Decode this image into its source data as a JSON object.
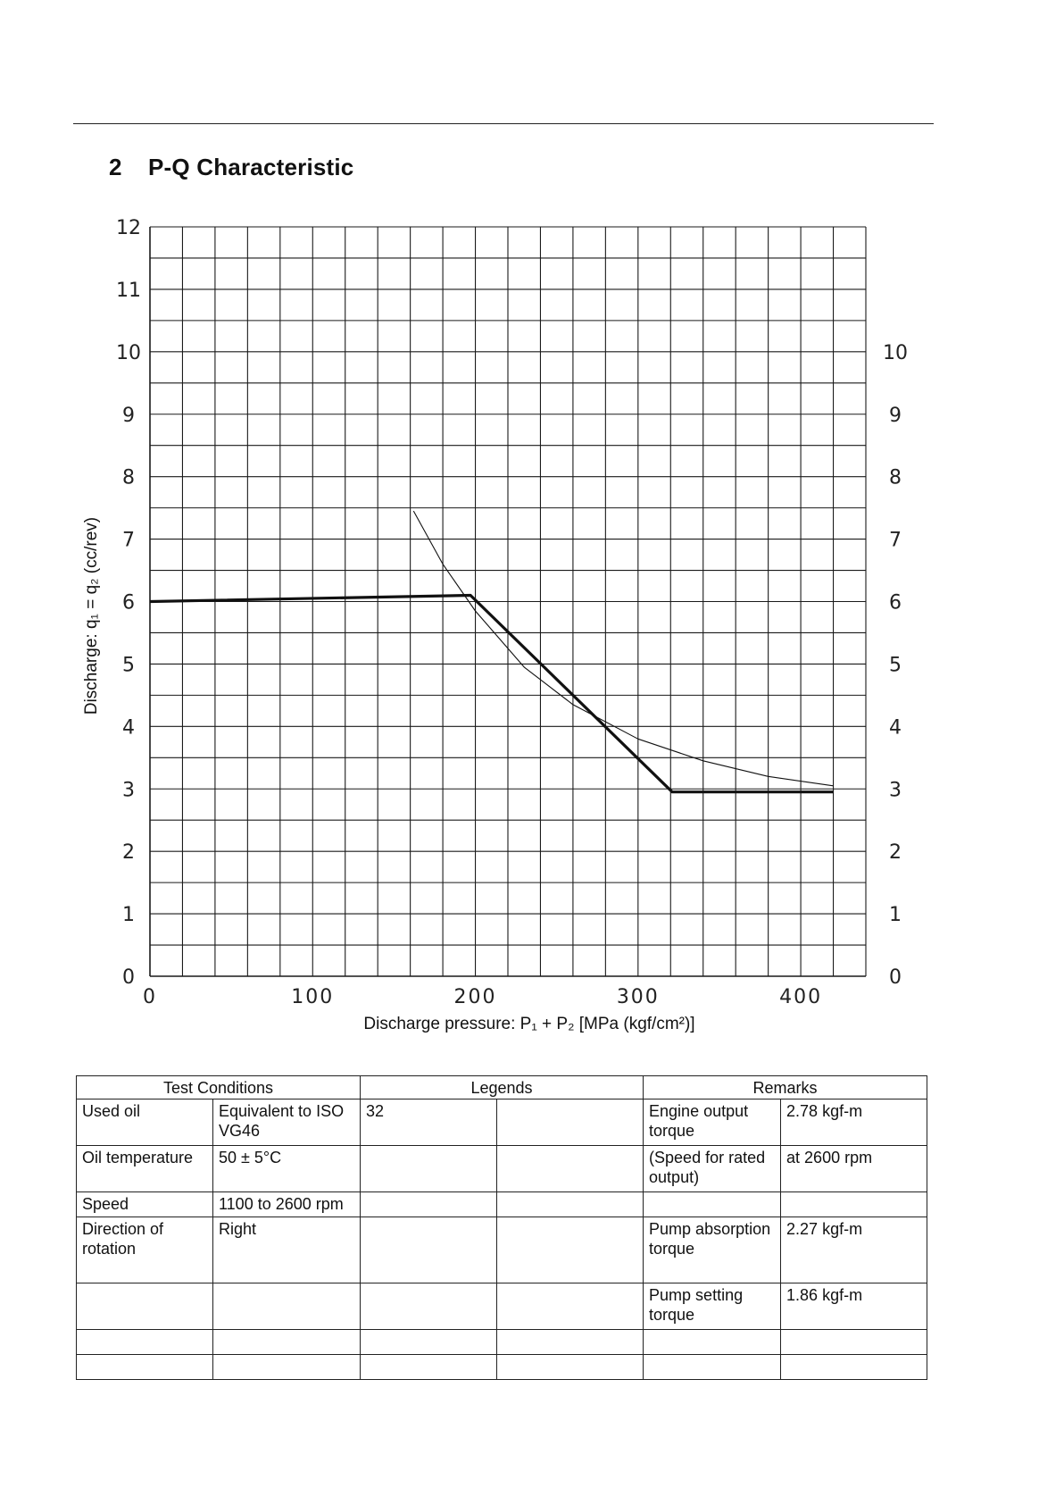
{
  "section": {
    "number": "2",
    "title": "P-Q Characteristic"
  },
  "chart_data": {
    "type": "line",
    "title": "",
    "xlabel": "Discharge pressure: P₁ + P₂ [MPa (kgf/cm²)]",
    "ylabel": "Discharge: q₁ = q₂ (cc/rev)",
    "xlim": [
      0,
      440
    ],
    "ylim": [
      0,
      12
    ],
    "x_ticks": [
      "0",
      "100",
      "200",
      "300",
      "400"
    ],
    "y_ticks_left": [
      "0",
      "1",
      "2",
      "3",
      "4",
      "5",
      "6",
      "7",
      "8",
      "9",
      "10",
      "11",
      "12"
    ],
    "y_ticks_right": [
      "0",
      "1",
      "2",
      "3",
      "4",
      "5",
      "6",
      "7",
      "8",
      "9",
      "10"
    ],
    "grid": true,
    "series": [
      {
        "style": "thick",
        "x": [
          0,
          197,
          321,
          420
        ],
        "y": [
          6.0,
          6.1,
          2.95,
          2.95
        ]
      },
      {
        "style": "thin",
        "x": [
          162,
          180,
          200,
          230,
          260,
          300,
          340,
          380,
          420
        ],
        "y": [
          7.45,
          6.6,
          5.85,
          4.95,
          4.35,
          3.8,
          3.45,
          3.2,
          3.05
        ]
      }
    ]
  },
  "table": {
    "headers": {
      "test_conditions": "Test Conditions",
      "legends": "Legends",
      "remarks": "Remarks"
    },
    "rows": [
      {
        "c1": "Used oil",
        "c2": "Equivalent to ISO VG46",
        "c3": "32",
        "c4": "",
        "c5": "Engine output torque",
        "c6": "2.78 kgf-m"
      },
      {
        "c1": "Oil temperature",
        "c2": "50 ± 5°C",
        "c3": "",
        "c4": "",
        "c5": "(Speed for rated output)",
        "c6": "at 2600 rpm"
      },
      {
        "c1": "Speed",
        "c2": "1100 to 2600 rpm",
        "c3": "",
        "c4": "",
        "c5": "",
        "c6": ""
      },
      {
        "c1": "Direction of rotation",
        "c2": "Right",
        "c3": "",
        "c4": "",
        "c5": "Pump absorption torque",
        "c6": "2.27 kgf-m"
      },
      {
        "c1": "",
        "c2": "",
        "c3": "",
        "c4": "",
        "c5": "Pump setting torque",
        "c6": "1.86 kgf-m"
      },
      {
        "c1": "",
        "c2": "",
        "c3": "",
        "c4": "",
        "c5": "",
        "c6": ""
      },
      {
        "c1": "",
        "c2": "",
        "c3": "",
        "c4": "",
        "c5": "",
        "c6": ""
      }
    ]
  }
}
